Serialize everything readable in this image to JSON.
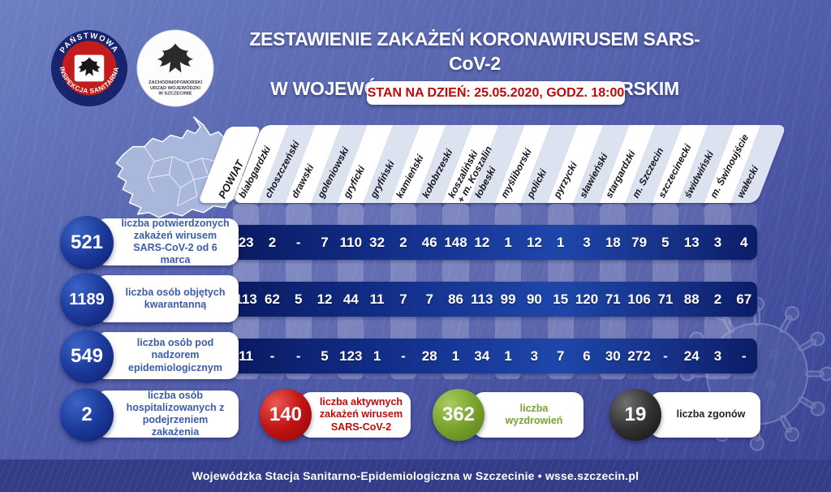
{
  "colors": {
    "background_blue": "#4f5aa8",
    "band_navy": "#13308c",
    "stat_circle_blue": "#1d3b9c",
    "active_red": "#c00a0a",
    "recovered_green": "#76a332",
    "deaths_dark": "#222222",
    "label_blue": "#3b5ca8"
  },
  "header": {
    "title_line1": "ZESTAWIENIE ZAKAŻEŃ KORONAWIRUSEM SARS-CoV-2",
    "title_line2": "W WOJEWÓDZTWIE ZACHODNIOPOMORSKIM",
    "status_badge": "STAN NA DZIEŃ: 25.05.2020, GODZ. 18:00",
    "logo_sanitary_top": "PAŃSTWOWA",
    "logo_sanitary_bottom": "INSPEKCJA SANITARNA",
    "logo_voivodeship_line1": "ZACHODNIOPOMORSKI",
    "logo_voivodeship_line2": "URZĄD WOJEWÓDZKI",
    "logo_voivodeship_line3": "W SZCZECINIE"
  },
  "table": {
    "corner_header": "POWIAT",
    "columns": [
      "białogardzki",
      "choszczeński",
      "drawski",
      "goleniowski",
      "gryficki",
      "gryfiński",
      "kamieński",
      "kołobrzeski",
      "koszaliński\n+ m. Koszalin",
      "łobeski",
      "myśliborski",
      "policki",
      "pyrzycki",
      "sławieński",
      "stargardzki",
      "m. Szczecin",
      "szczecinecki",
      "świdwiński",
      "m. Świnoujście",
      "wałecki"
    ],
    "rows": [
      {
        "total": "521",
        "label": "liczba potwierdzonych zakażeń wirusem SARS-CoV-2 od 6 marca",
        "values": [
          "23",
          "2",
          "-",
          "7",
          "110",
          "32",
          "2",
          "46",
          "148",
          "12",
          "1",
          "12",
          "1",
          "3",
          "18",
          "79",
          "5",
          "13",
          "3",
          "4"
        ]
      },
      {
        "total": "1189",
        "label": "liczba osób objętych kwarantanną",
        "values": [
          "113",
          "62",
          "5",
          "12",
          "44",
          "11",
          "7",
          "7",
          "86",
          "113",
          "99",
          "90",
          "15",
          "120",
          "71",
          "106",
          "71",
          "88",
          "2",
          "67"
        ]
      },
      {
        "total": "549",
        "label": "liczba osób pod nadzorem epidemiologicznym",
        "values": [
          "11",
          "-",
          "-",
          "5",
          "123",
          "1",
          "-",
          "28",
          "1",
          "34",
          "1",
          "3",
          "7",
          "6",
          "30",
          "272",
          "-",
          "24",
          "3",
          "-"
        ]
      }
    ],
    "hospitalized": {
      "total": "2",
      "label": "liczba osób hospitalizowanych z podejrzeniem zakażenia"
    }
  },
  "summary": [
    {
      "value": "140",
      "label": "liczba aktywnych zakażeń wirusem SARS-CoV-2",
      "tone": "red",
      "color": "#c00a0a"
    },
    {
      "value": "362",
      "label": "liczba wyzdrowień",
      "tone": "green",
      "color": "#76a332"
    },
    {
      "value": "19",
      "label": "liczba zgonów",
      "tone": "dark",
      "color": "#222222"
    }
  ],
  "footer": "Wojewódzka Stacja Sanitarno-Epidemiologiczna w Szczecinie  •  wsse.szczecin.pl",
  "chart_data": {
    "type": "table",
    "title": "ZESTAWIENIE ZAKAŻEŃ KORONAWIRUSEM SARS-CoV-2 W WOJEWÓDZTWIE ZACHODNIOPOMORSKIM",
    "as_of": "25.05.2020, GODZ. 18:00",
    "categories": [
      "białogardzki",
      "choszczeński",
      "drawski",
      "goleniowski",
      "gryficki",
      "gryfiński",
      "kamieński",
      "kołobrzeski",
      "koszaliński + m. Koszalin",
      "łobeski",
      "myśliborski",
      "policki",
      "pyrzycki",
      "sławieński",
      "stargardzki",
      "m. Szczecin",
      "szczecinecki",
      "świdwiński",
      "m. Świnoujście",
      "wałecki"
    ],
    "series": [
      {
        "name": "liczba potwierdzonych zakażeń wirusem SARS-CoV-2 od 6 marca",
        "total": 521,
        "values": [
          23,
          2,
          null,
          7,
          110,
          32,
          2,
          46,
          148,
          12,
          1,
          12,
          1,
          3,
          18,
          79,
          5,
          13,
          3,
          4
        ]
      },
      {
        "name": "liczba osób objętych kwarantanną",
        "total": 1189,
        "values": [
          113,
          62,
          5,
          12,
          44,
          11,
          7,
          7,
          86,
          113,
          99,
          90,
          15,
          120,
          71,
          106,
          71,
          88,
          2,
          67
        ]
      },
      {
        "name": "liczba osób pod nadzorem epidemiologicznym",
        "total": 549,
        "values": [
          11,
          null,
          null,
          5,
          123,
          1,
          null,
          28,
          1,
          34,
          1,
          3,
          7,
          6,
          30,
          272,
          null,
          24,
          3,
          null
        ]
      }
    ],
    "totals": {
      "hospitalized": 2,
      "active_infections": 140,
      "recovered": 362,
      "deaths": 19
    }
  }
}
